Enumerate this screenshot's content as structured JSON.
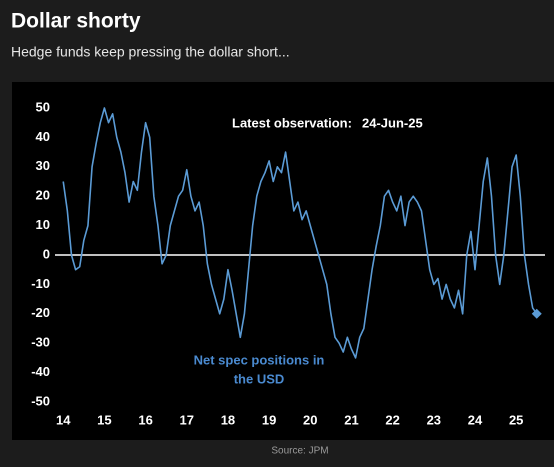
{
  "chart_data": {
    "type": "line",
    "title": "Dollar shorty",
    "subtitle": "Hedge funds keep pressing the dollar short...",
    "source": "Source: JPM",
    "annotations": [
      "Latest observation:",
      "24-Jun-25",
      "Net spec positions in",
      "the USD"
    ],
    "x": [
      14.0,
      14.1,
      14.2,
      14.3,
      14.4,
      14.5,
      14.6,
      14.7,
      14.8,
      14.9,
      15.0,
      15.1,
      15.2,
      15.3,
      15.4,
      15.5,
      15.6,
      15.7,
      15.8,
      15.9,
      16.0,
      16.1,
      16.2,
      16.3,
      16.4,
      16.5,
      16.6,
      16.7,
      16.8,
      16.9,
      17.0,
      17.1,
      17.2,
      17.3,
      17.4,
      17.5,
      17.6,
      17.7,
      17.8,
      17.9,
      18.0,
      18.1,
      18.2,
      18.3,
      18.4,
      18.5,
      18.6,
      18.7,
      18.8,
      18.9,
      19.0,
      19.1,
      19.2,
      19.3,
      19.4,
      19.5,
      19.6,
      19.7,
      19.8,
      19.9,
      20.0,
      20.1,
      20.2,
      20.3,
      20.4,
      20.5,
      20.6,
      20.7,
      20.8,
      20.9,
      21.0,
      21.1,
      21.2,
      21.3,
      21.4,
      21.5,
      21.6,
      21.7,
      21.8,
      21.9,
      22.0,
      22.1,
      22.2,
      22.3,
      22.4,
      22.5,
      22.6,
      22.7,
      22.8,
      22.9,
      23.0,
      23.1,
      23.2,
      23.3,
      23.4,
      23.5,
      23.6,
      23.7,
      23.8,
      23.9,
      24.0,
      24.1,
      24.2,
      24.3,
      24.4,
      24.5,
      24.6,
      24.7,
      24.8,
      24.9,
      25.0,
      25.1,
      25.2,
      25.3,
      25.4,
      25.5
    ],
    "series": [
      {
        "name": "Net spec positions in the USD",
        "color": "#5b9bd5",
        "values": [
          25,
          15,
          0,
          -5,
          -4,
          5,
          10,
          30,
          38,
          45,
          50,
          45,
          48,
          40,
          35,
          28,
          18,
          25,
          22,
          35,
          45,
          40,
          20,
          10,
          -3,
          0,
          10,
          15,
          20,
          22,
          29,
          20,
          15,
          18,
          10,
          -3,
          -10,
          -15,
          -20,
          -15,
          -5,
          -12,
          -20,
          -28,
          -20,
          -5,
          10,
          20,
          25,
          28,
          32,
          25,
          30,
          28,
          35,
          25,
          15,
          18,
          12,
          15,
          10,
          5,
          0,
          -5,
          -10,
          -20,
          -28,
          -30,
          -33,
          -28,
          -32,
          -35,
          -28,
          -25,
          -15,
          -5,
          3,
          10,
          20,
          22,
          18,
          15,
          20,
          10,
          18,
          20,
          18,
          15,
          5,
          -5,
          -10,
          -8,
          -15,
          -10,
          -15,
          -18,
          -12,
          -20,
          0,
          8,
          -5,
          10,
          25,
          33,
          20,
          0,
          -10,
          0,
          15,
          30,
          34,
          20,
          0,
          -10,
          -18,
          -20
        ]
      }
    ],
    "xlim": [
      13.8,
      25.7
    ],
    "xticks": [
      14,
      15,
      16,
      17,
      18,
      19,
      20,
      21,
      22,
      23,
      24,
      25
    ],
    "ylim": [
      -50,
      50
    ],
    "yticks": [
      50,
      40,
      30,
      20,
      10,
      0,
      -10,
      -20,
      -30,
      -40,
      -50
    ],
    "grid": false
  }
}
